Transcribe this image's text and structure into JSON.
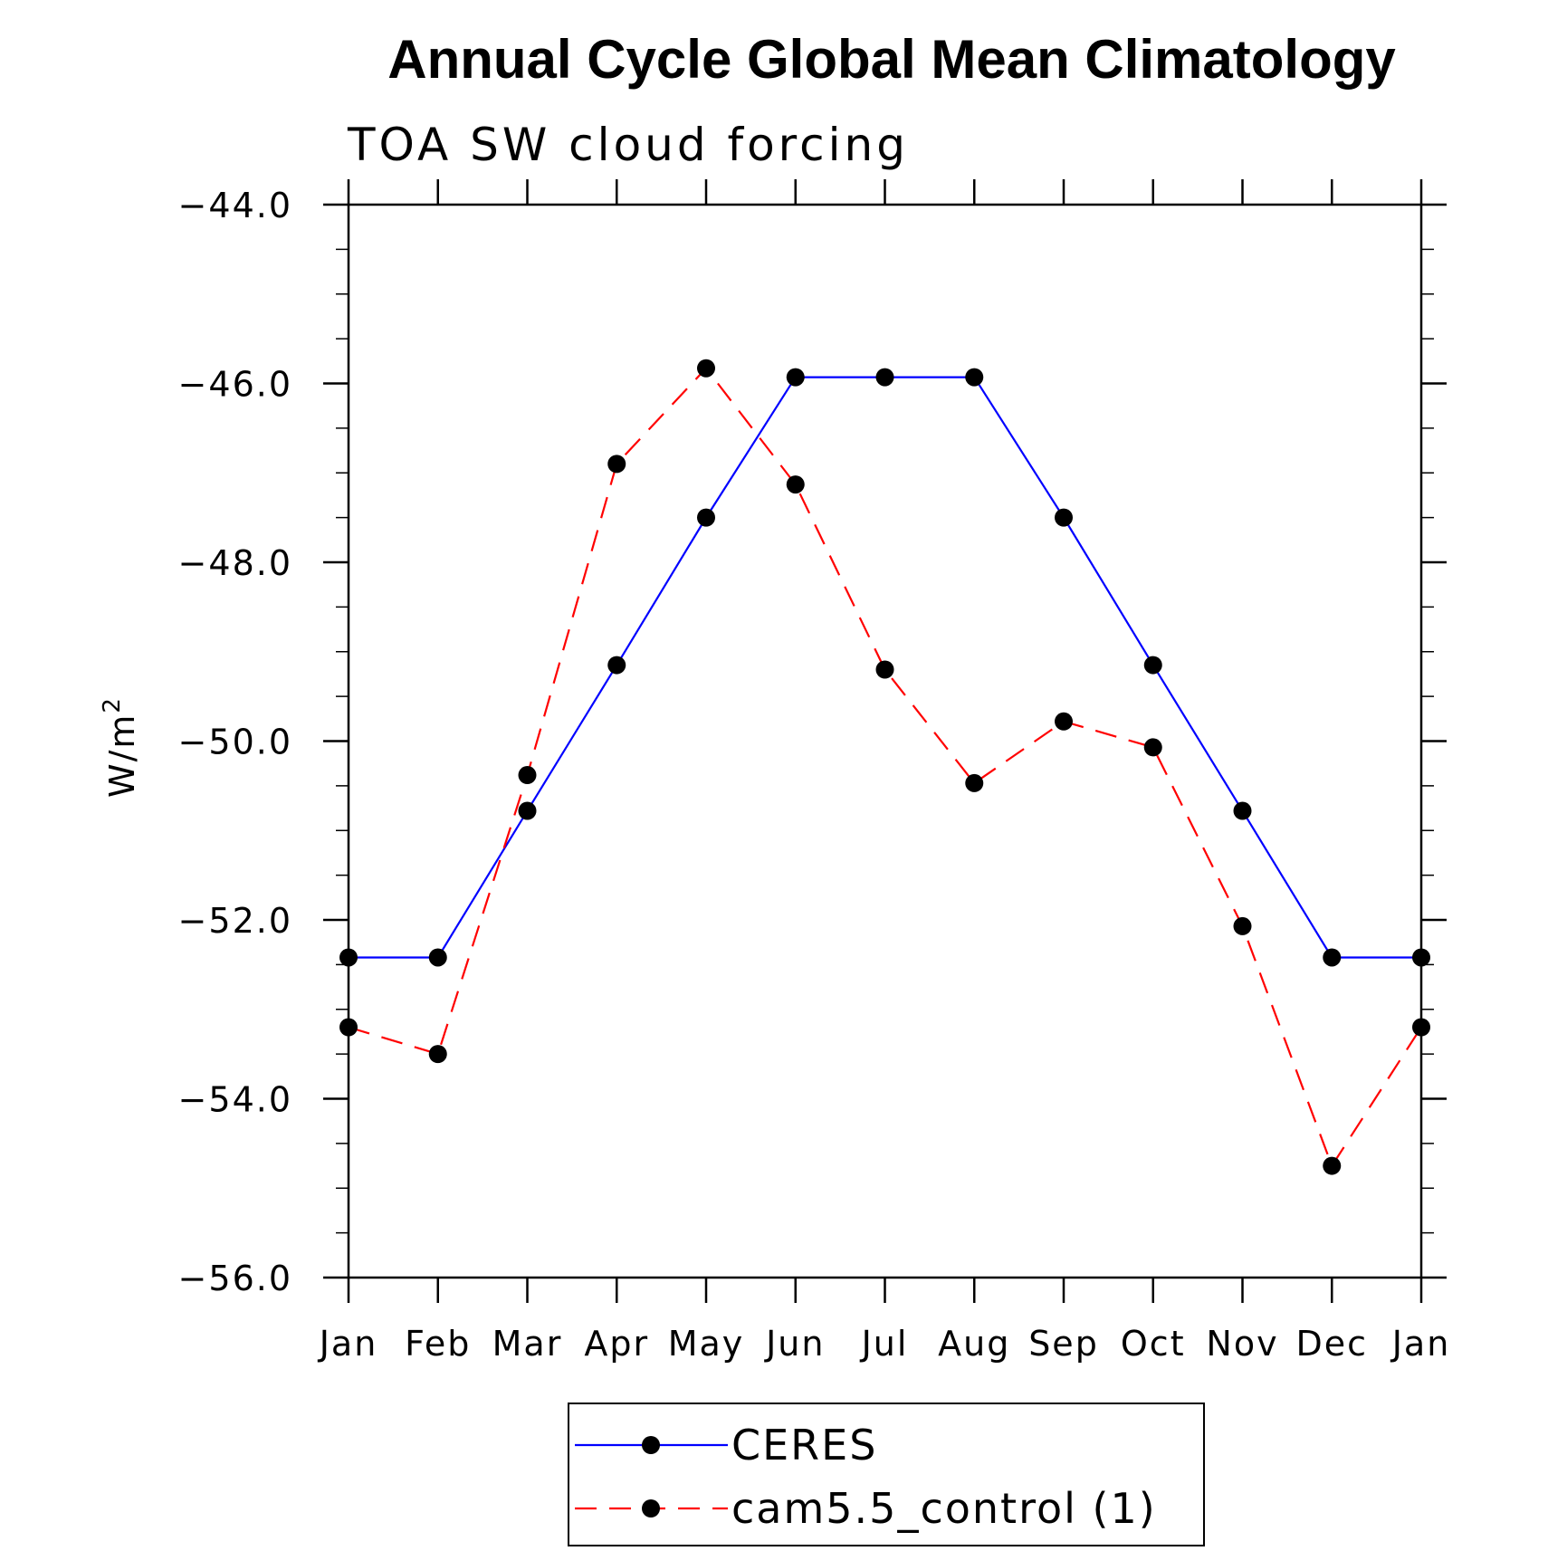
{
  "chart_data": {
    "type": "line",
    "title": "Annual Cycle Global Mean Climatology",
    "subtitle": "TOA SW cloud forcing",
    "xlabel": "",
    "ylabel": "W/m",
    "ylabel_superscript": "2",
    "categories": [
      "Jan",
      "Feb",
      "Mar",
      "Apr",
      "May",
      "Jun",
      "Jul",
      "Aug",
      "Sep",
      "Oct",
      "Nov",
      "Dec",
      "Jan"
    ],
    "ylim": [
      -56.0,
      -44.0
    ],
    "yticks": [
      -44.0,
      -46.0,
      -48.0,
      -50.0,
      -52.0,
      -54.0,
      -56.0
    ],
    "ytick_labels": [
      "−44.0",
      "−46.0",
      "−48.0",
      "−50.0",
      "−52.0",
      "−54.0",
      "−56.0"
    ],
    "grid": false,
    "legend_position": "bottom-center",
    "series": [
      {
        "name": "CERES",
        "color": "#0000ff",
        "line_style": "solid",
        "marker_color": "#000000",
        "values": [
          -52.42,
          -52.42,
          -50.78,
          -49.15,
          -47.5,
          -45.93,
          -45.93,
          -45.93,
          -47.5,
          -49.15,
          -50.78,
          -52.42,
          -52.42
        ]
      },
      {
        "name": "cam5.5_control (1)",
        "color": "#ff0000",
        "line_style": "dashed",
        "marker_color": "#000000",
        "values": [
          -53.2,
          -53.5,
          -50.38,
          -46.9,
          -45.83,
          -47.13,
          -49.2,
          -50.47,
          -49.78,
          -50.07,
          -52.07,
          -54.75,
          -53.2
        ]
      }
    ]
  }
}
